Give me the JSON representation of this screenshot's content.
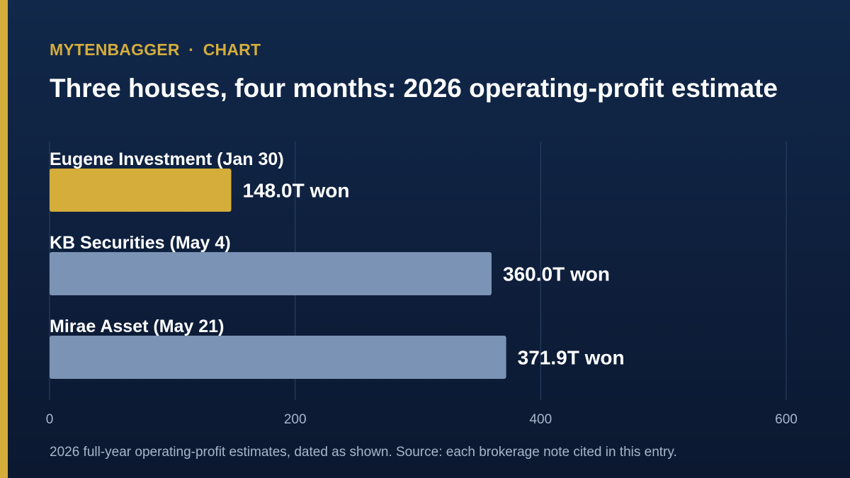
{
  "header": {
    "brand": "MYTENBAGGER",
    "separator": "·",
    "section": "CHART"
  },
  "colors": {
    "accent": "#d4ad3b",
    "highlight_bar": "#d4ad3b",
    "bar": "#7b93b5",
    "grid": "#2c4466",
    "background": "#0e1f3c"
  },
  "chart_data": {
    "type": "bar",
    "orientation": "horizontal",
    "title": "Three houses, four months: 2026 operating-profit estimate",
    "categories": [
      "Eugene Investment (Jan 30)",
      "KB Securities (May 4)",
      "Mirae Asset (May 21)"
    ],
    "values": [
      148.0,
      360.0,
      371.9
    ],
    "value_labels": [
      "148.0T won",
      "360.0T won",
      "371.9T won"
    ],
    "highlight_index": 0,
    "xlim": [
      0,
      600
    ],
    "xticks": [
      0,
      200,
      400,
      600
    ],
    "grid": true,
    "xlabel": "",
    "ylabel": ""
  },
  "footnote": "2026 full-year operating-profit estimates, dated as shown. Source: each brokerage note cited in this entry."
}
